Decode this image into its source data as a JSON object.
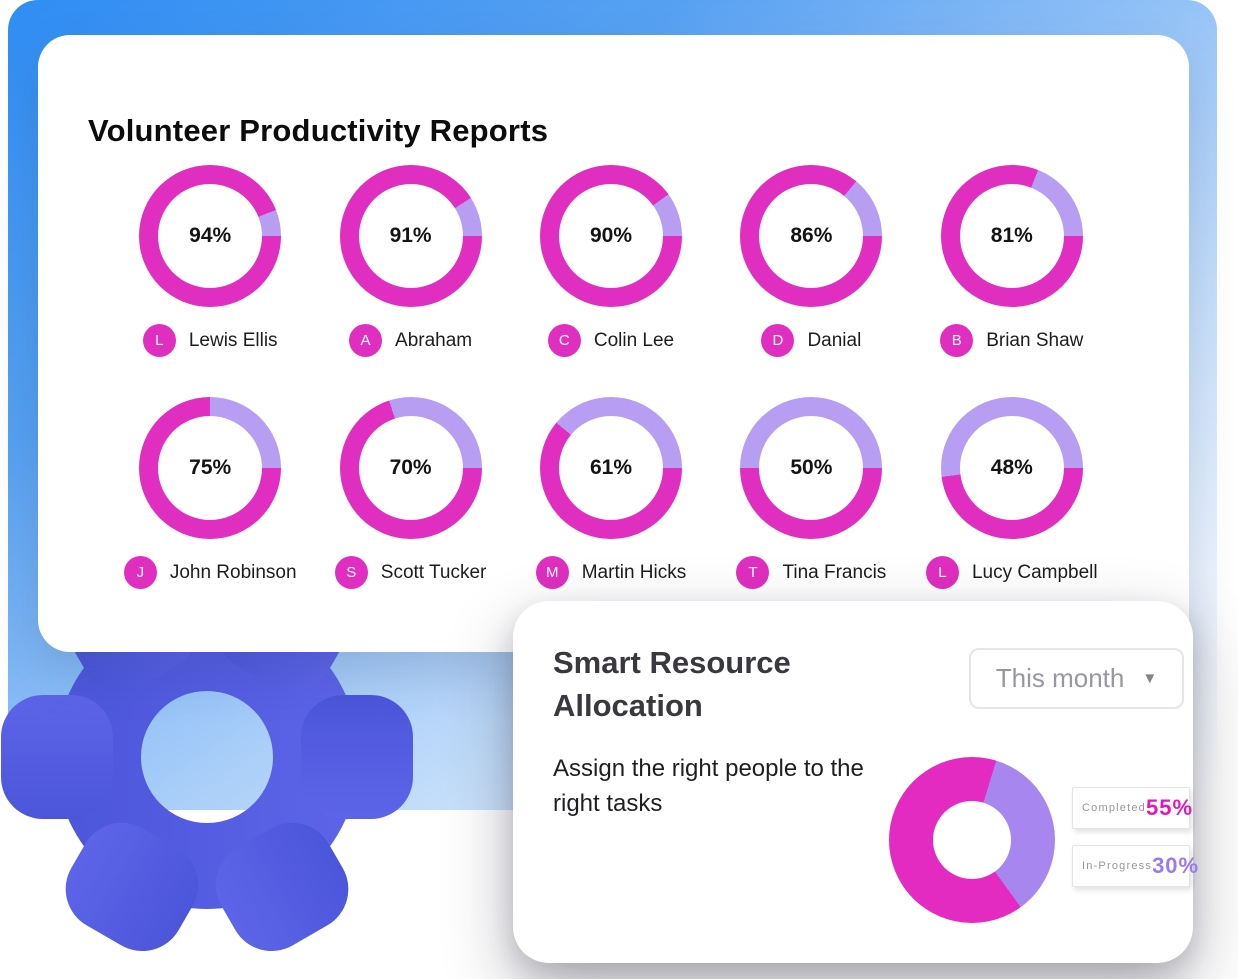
{
  "colors": {
    "progress": "#E02EC0",
    "remainder": "#B89EF2",
    "pie_completed": "#E32BC2",
    "pie_in_progress": "#A886F0",
    "legend_completed_value": "#E517B9",
    "legend_in_progress_value": "#9A79F1",
    "panel_blue": "#2F8DF3",
    "gear_indigo": "#545EE1"
  },
  "reports_card": {
    "title": "Volunteer Productivity Reports",
    "volunteers": [
      {
        "initial": "L",
        "name": "Lewis Ellis",
        "percent": 94
      },
      {
        "initial": "A",
        "name": "Abraham",
        "percent": 91
      },
      {
        "initial": "C",
        "name": "Colin Lee",
        "percent": 90
      },
      {
        "initial": "D",
        "name": "Danial",
        "percent": 86
      },
      {
        "initial": "B",
        "name": "Brian Shaw",
        "percent": 81
      },
      {
        "initial": "J",
        "name": "John Robinson",
        "percent": 75
      },
      {
        "initial": "S",
        "name": "Scott Tucker",
        "percent": 70
      },
      {
        "initial": "M",
        "name": "Martin Hicks",
        "percent": 61
      },
      {
        "initial": "T",
        "name": "Tina Francis",
        "percent": 50
      },
      {
        "initial": "L",
        "name": "Lucy Campbell",
        "percent": 48
      }
    ]
  },
  "allocation_card": {
    "title": "Smart Resource Allocation",
    "period_dropdown": {
      "value": "This month",
      "caret": "▼"
    },
    "description": "Assign the right people to the right tasks",
    "donut": {
      "completed": 55,
      "in_progress": 30,
      "start_angle_deg": 17
    },
    "legend": [
      {
        "label": "Completed",
        "value": "55%"
      },
      {
        "label": "In-Progress",
        "value": "30%"
      }
    ]
  },
  "chart_data": [
    {
      "type": "pie",
      "variant": "donut-progress-rings",
      "title": "Volunteer Productivity Reports",
      "series": [
        {
          "name": "Lewis Ellis",
          "value": 94
        },
        {
          "name": "Abraham",
          "value": 91
        },
        {
          "name": "Colin Lee",
          "value": 90
        },
        {
          "name": "Danial",
          "value": 86
        },
        {
          "name": "Brian Shaw",
          "value": 81
        },
        {
          "name": "John Robinson",
          "value": 75
        },
        {
          "name": "Scott Tucker",
          "value": 70
        },
        {
          "name": "Martin Hicks",
          "value": 61
        },
        {
          "name": "Tina Francis",
          "value": 50
        },
        {
          "name": "Lucy Campbell",
          "value": 48
        }
      ],
      "unit": "%",
      "progress_color": "#E02EC0",
      "remainder_color": "#B89EF2"
    },
    {
      "type": "pie",
      "variant": "donut",
      "title": "Smart Resource Allocation",
      "categories": [
        "Completed",
        "In-Progress"
      ],
      "values": [
        55,
        30
      ],
      "unit": "%",
      "colors": [
        "#E32BC2",
        "#A886F0"
      ],
      "legend_position": "right"
    }
  ]
}
